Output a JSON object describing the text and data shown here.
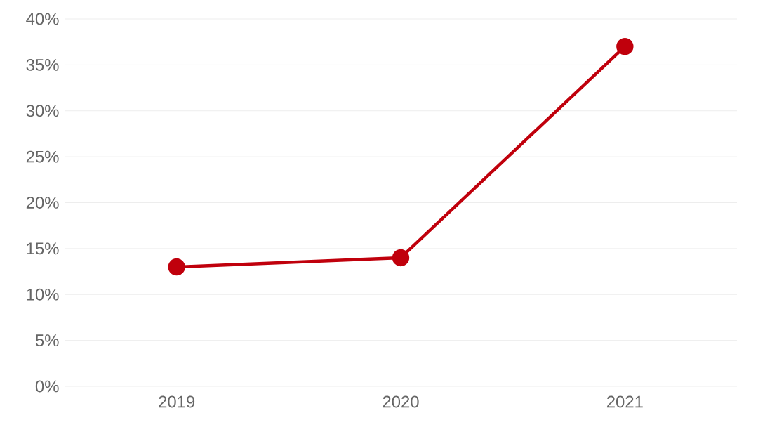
{
  "chart_data": {
    "type": "line",
    "categories": [
      "2019",
      "2020",
      "2021"
    ],
    "series": [
      {
        "color": "#c0000c",
        "values": [
          13,
          14,
          37
        ]
      }
    ],
    "ylim": [
      0,
      40
    ],
    "yticks": [
      {
        "value": 0,
        "label": "0%"
      },
      {
        "value": 5,
        "label": "5%"
      },
      {
        "value": 10,
        "label": "10%"
      },
      {
        "value": 15,
        "label": "15%"
      },
      {
        "value": 20,
        "label": "20%"
      },
      {
        "value": 25,
        "label": "25%"
      },
      {
        "value": 30,
        "label": "30%"
      },
      {
        "value": 35,
        "label": "35%"
      },
      {
        "value": 40,
        "label": "40%"
      }
    ],
    "grid": "y",
    "marker": "circle",
    "line_style": "solid"
  }
}
